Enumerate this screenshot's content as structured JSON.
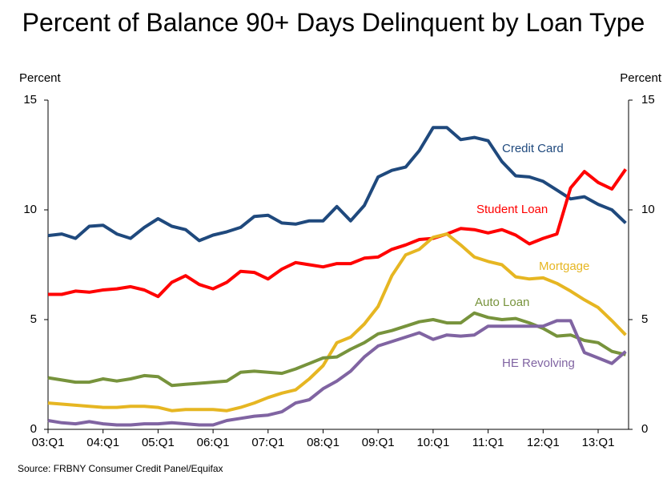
{
  "chart_data": {
    "type": "line",
    "title": "Percent of Balance 90+ Days Delinquent by Loan Type",
    "ylabel": "Percent",
    "y2label": "Percent",
    "source": "Source: FRBNY Consumer Credit Panel/Equifax",
    "categories": [
      "03:Q1",
      null,
      null,
      null,
      "04:Q1",
      null,
      null,
      null,
      "05:Q1",
      null,
      null,
      null,
      "06:Q1",
      null,
      null,
      null,
      "07:Q1",
      null,
      null,
      null,
      "08:Q1",
      null,
      null,
      null,
      "09:Q1",
      null,
      null,
      null,
      "10:Q1",
      null,
      null,
      null,
      "11:Q1",
      null,
      null,
      null,
      "12:Q1",
      null,
      null,
      null,
      "13:Q1",
      null,
      null
    ],
    "series": [
      {
        "name": "Credit Card",
        "color": "#1f497d",
        "values": [
          8.83,
          8.9,
          8.7,
          9.25,
          9.3,
          8.9,
          8.7,
          9.2,
          9.6,
          9.25,
          9.1,
          8.6,
          8.85,
          9.0,
          9.2,
          9.7,
          9.75,
          9.4,
          9.35,
          9.5,
          9.5,
          10.15,
          9.5,
          10.2,
          11.5,
          11.8,
          11.95,
          12.7,
          13.75,
          13.75,
          13.2,
          13.3,
          13.15,
          12.2,
          11.55,
          11.5,
          11.3,
          10.9,
          10.5,
          10.6,
          10.25,
          10.0,
          9.4
        ]
      },
      {
        "name": "Student Loan",
        "color": "#ff0000",
        "values": [
          6.15,
          6.15,
          6.3,
          6.25,
          6.35,
          6.4,
          6.5,
          6.35,
          6.05,
          6.7,
          7.0,
          6.6,
          6.4,
          6.7,
          7.2,
          7.15,
          6.85,
          7.3,
          7.6,
          7.5,
          7.4,
          7.55,
          7.55,
          7.8,
          7.85,
          8.2,
          8.4,
          8.65,
          8.7,
          8.9,
          9.15,
          9.1,
          8.95,
          9.1,
          8.85,
          8.45,
          8.7,
          8.9,
          11.0,
          11.75,
          11.25,
          10.95,
          11.85
        ]
      },
      {
        "name": "Mortgage",
        "color": "#e6b622",
        "values": [
          1.2,
          1.15,
          1.1,
          1.05,
          1.0,
          1.0,
          1.05,
          1.05,
          1.0,
          0.85,
          0.9,
          0.9,
          0.9,
          0.85,
          1.0,
          1.2,
          1.45,
          1.65,
          1.8,
          2.3,
          2.9,
          3.95,
          4.2,
          4.8,
          5.6,
          7.0,
          7.95,
          8.2,
          8.75,
          8.9,
          8.4,
          7.85,
          7.65,
          7.5,
          6.95,
          6.85,
          6.9,
          6.65,
          6.3,
          5.9,
          5.55,
          4.95,
          4.3
        ]
      },
      {
        "name": "Auto Loan",
        "color": "#77933c",
        "values": [
          2.35,
          2.25,
          2.15,
          2.15,
          2.3,
          2.2,
          2.3,
          2.45,
          2.4,
          2.0,
          2.05,
          2.1,
          2.15,
          2.2,
          2.6,
          2.65,
          2.6,
          2.55,
          2.75,
          3.0,
          3.25,
          3.3,
          3.65,
          3.95,
          4.35,
          4.5,
          4.7,
          4.9,
          5.0,
          4.85,
          4.85,
          5.3,
          5.1,
          5.0,
          5.05,
          4.85,
          4.6,
          4.25,
          4.3,
          4.05,
          3.95,
          3.55,
          3.4
        ]
      },
      {
        "name": "HE Revolving",
        "color": "#8064a2",
        "values": [
          0.4,
          0.3,
          0.25,
          0.35,
          0.25,
          0.2,
          0.2,
          0.25,
          0.25,
          0.3,
          0.25,
          0.2,
          0.2,
          0.4,
          0.5,
          0.6,
          0.65,
          0.8,
          1.2,
          1.35,
          1.85,
          2.2,
          2.65,
          3.3,
          3.8,
          4.0,
          4.2,
          4.4,
          4.1,
          4.3,
          4.25,
          4.3,
          4.7,
          4.7,
          4.7,
          4.7,
          4.7,
          4.95,
          4.95,
          3.5,
          3.25,
          3.0,
          3.55
        ]
      }
    ],
    "ylim": [
      0,
      15
    ],
    "yticks": [
      0,
      5,
      10,
      15
    ],
    "y2lim": [
      0,
      15
    ],
    "y2ticks": [
      0,
      5,
      10,
      15
    ],
    "grid": false
  }
}
